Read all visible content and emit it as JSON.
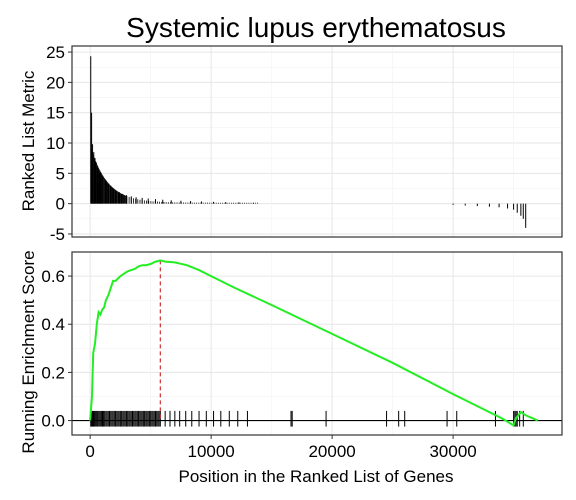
{
  "chart_data": {
    "type": "line",
    "title": "Systemic lupus erythematosus",
    "xlabel": "Position in the Ranked List of Genes",
    "xlim": [
      -1500,
      39000
    ],
    "xticks": [
      0,
      10000,
      20000,
      30000
    ],
    "xtick_labels": [
      "0",
      "10000",
      "20000",
      "30000"
    ],
    "top_panel": {
      "ylabel": "Ranked List Metric",
      "ylim": [
        -5.5,
        26
      ],
      "yticks": [
        -5,
        0,
        5,
        10,
        15,
        20,
        25
      ],
      "ytick_labels": [
        "-5",
        "0",
        "5",
        "10",
        "15",
        "20",
        "25"
      ],
      "ranked_metric": {
        "x": [
          50,
          120,
          200,
          300,
          400,
          500,
          600,
          700,
          800,
          900,
          1000,
          1150,
          1300,
          1500,
          1700,
          1900,
          2100,
          2400,
          2700,
          3000,
          3400,
          3800,
          4300,
          4800,
          5400,
          6000,
          6700,
          7500,
          8300,
          9200,
          10200,
          11200,
          12300,
          13500,
          30000,
          31000,
          32000,
          33000,
          33800,
          34500,
          35000,
          35300,
          35600,
          35800,
          36000
        ],
        "values": [
          24.3,
          15,
          9.8,
          8.5,
          7.5,
          6.8,
          6.0,
          5.6,
          5.1,
          4.8,
          4.5,
          4.0,
          3.6,
          3.2,
          2.8,
          2.5,
          2.2,
          1.9,
          1.6,
          1.4,
          1.2,
          1.05,
          0.95,
          0.85,
          0.75,
          0.65,
          0.55,
          0.48,
          0.42,
          0.35,
          0.3,
          0.25,
          0.2,
          0.15,
          -0.2,
          -0.3,
          -0.4,
          -0.5,
          -0.6,
          -0.8,
          -1.0,
          -1.5,
          -2.0,
          -2.5,
          -4.0
        ]
      }
    },
    "bottom_panel": {
      "ylabel": "Running Enrichment Score",
      "ylim": [
        -0.06,
        0.7
      ],
      "yticks": [
        0,
        0.2,
        0.4,
        0.6
      ],
      "ytick_labels": [
        "0.0",
        "0.2",
        "0.4",
        "0.6"
      ],
      "series": [
        {
          "name": "Running Enrichment Score",
          "color": "#22ee22",
          "x": [
            0,
            150,
            250,
            400,
            550,
            700,
            850,
            1000,
            1150,
            1300,
            1500,
            1700,
            1900,
            2100,
            2300,
            2500,
            2800,
            3100,
            3400,
            3700,
            4000,
            4300,
            4600,
            5000,
            5400,
            5600,
            5800,
            6200,
            7000,
            8000,
            9000,
            10000,
            12000,
            15000,
            20000,
            25000,
            30000,
            33000,
            34000,
            35000,
            35200,
            35600,
            36000,
            37000
          ],
          "y": [
            0.0,
            0.1,
            0.28,
            0.32,
            0.4,
            0.45,
            0.44,
            0.46,
            0.47,
            0.5,
            0.52,
            0.55,
            0.58,
            0.58,
            0.59,
            0.6,
            0.61,
            0.62,
            0.625,
            0.63,
            0.64,
            0.645,
            0.645,
            0.65,
            0.66,
            0.662,
            0.665,
            0.66,
            0.657,
            0.645,
            0.625,
            0.6,
            0.55,
            0.48,
            0.36,
            0.24,
            0.11,
            0.035,
            0.01,
            -0.02,
            0.01,
            0.035,
            0.022,
            0.0
          ]
        }
      ],
      "peak": {
        "x": 5800,
        "y": 0.665,
        "color": "#cc3333"
      },
      "gene_hits": [
        50,
        100,
        160,
        220,
        280,
        350,
        420,
        500,
        580,
        660,
        750,
        840,
        930,
        1020,
        1110,
        1200,
        1300,
        1400,
        1500,
        1600,
        1700,
        1800,
        1900,
        2000,
        2100,
        2200,
        2300,
        2400,
        2500,
        2600,
        2700,
        2800,
        2900,
        3000,
        3100,
        3200,
        3300,
        3400,
        3500,
        3600,
        3700,
        3800,
        3900,
        4000,
        4100,
        4200,
        4300,
        4400,
        4500,
        4600,
        4700,
        4800,
        4900,
        5000,
        5100,
        5200,
        5300,
        5400,
        5500,
        5600,
        5700,
        5800,
        6200,
        6600,
        7000,
        7400,
        7900,
        8400,
        9000,
        9600,
        10200,
        10800,
        11500,
        12200,
        13000,
        16600,
        16700,
        19500,
        24500,
        25500,
        26000,
        29500,
        30300,
        33500,
        35000,
        35100,
        35200,
        35300,
        35500,
        35800
      ]
    }
  }
}
